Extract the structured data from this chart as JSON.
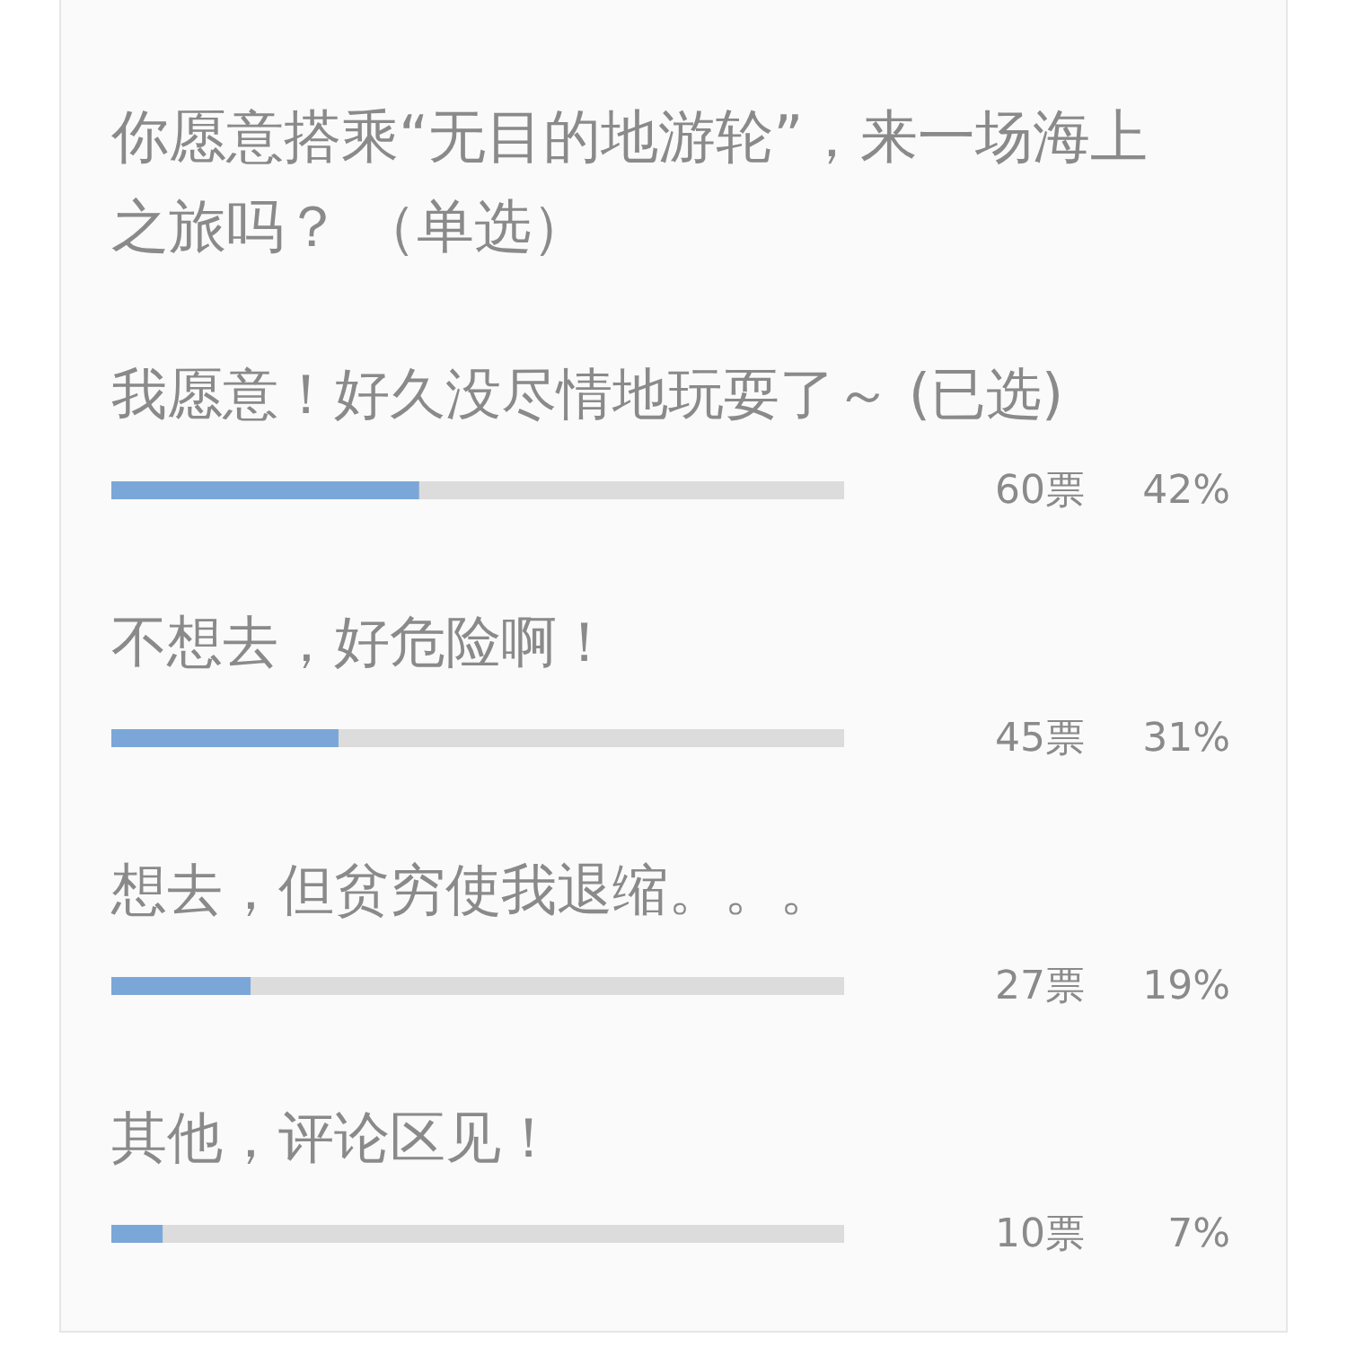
{
  "chart_data": {
    "type": "bar",
    "orientation": "horizontal",
    "title": "你愿意搭乘“无目的地游轮”，来一场海上之旅吗？ （单选）",
    "categories": [
      "我愿意！好久没尽情地玩耍了～ (已选)",
      "不想去，好危险啊！",
      "想去，但贫穷使我退缩。。。",
      "其他，评论区见！"
    ],
    "values": [
      42,
      31,
      19,
      7
    ],
    "color": "#7ba7d8",
    "xlim": [
      0,
      100
    ],
    "value_labels": [
      "42%",
      "31%",
      "19%",
      "7%"
    ],
    "annotations": [
      "60票",
      "45票",
      "27票",
      "10票"
    ],
    "tick_labels": "y"
  }
}
